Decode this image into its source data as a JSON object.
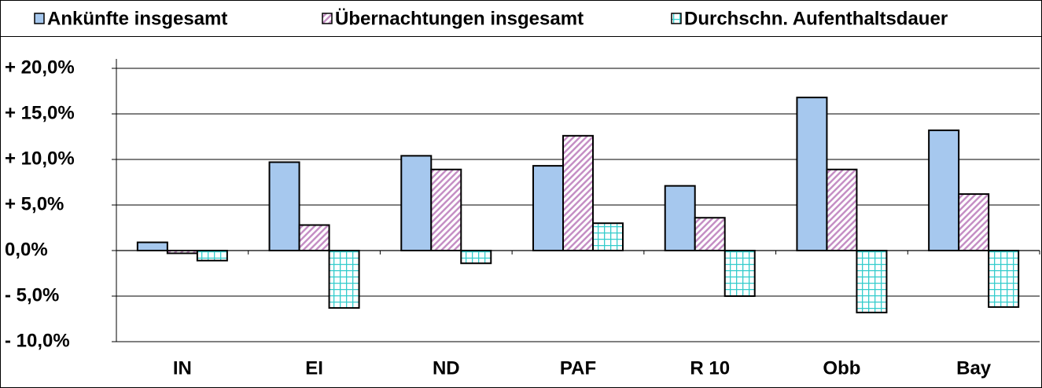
{
  "chart_data": {
    "type": "bar",
    "categories": [
      "IN",
      "EI",
      "ND",
      "PAF",
      "R 10",
      "Obb",
      "Bay"
    ],
    "series": [
      {
        "name": "Ankünfte insgesamt",
        "color": "#a6c8ee",
        "values": [
          0.9,
          9.7,
          10.4,
          9.3,
          7.1,
          16.8,
          13.2
        ]
      },
      {
        "name": "Übernachtungen insgesamt",
        "color": "#c58fc5",
        "values": [
          -0.3,
          2.8,
          8.9,
          12.6,
          3.6,
          8.9,
          6.2
        ]
      },
      {
        "name": "Durchschn. Aufenthaltsdauer",
        "color": "#33cccc",
        "values": [
          -1.1,
          -6.3,
          -1.4,
          3.0,
          -5.0,
          -6.8,
          -6.2
        ]
      }
    ],
    "ylim": [
      -10,
      20
    ],
    "yticks": [
      {
        "value": -10,
        "label": "- 10,0%"
      },
      {
        "value": -5,
        "label": "- 5,0%"
      },
      {
        "value": 0,
        "label": "0,0%"
      },
      {
        "value": 5,
        "label": "+ 5,0%"
      },
      {
        "value": 10,
        "label": "+ 10,0%"
      },
      {
        "value": 15,
        "label": "+ 15,0%"
      },
      {
        "value": 20,
        "label": "+ 20,0%"
      }
    ],
    "grid": true,
    "legend": "top"
  }
}
